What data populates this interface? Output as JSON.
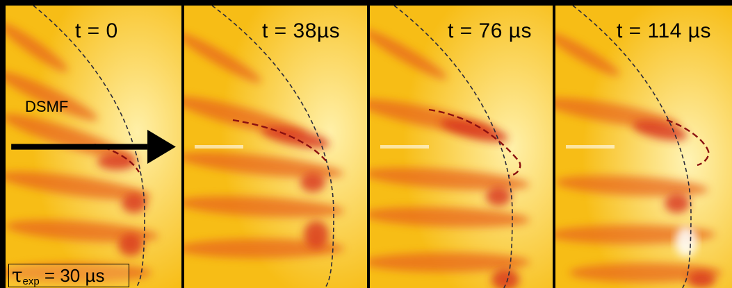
{
  "panels": [
    {
      "time_label": "t = 0"
    },
    {
      "time_label": "t = 38µs"
    },
    {
      "time_label": "t = 76 µs"
    },
    {
      "time_label": "t = 114 µs"
    }
  ],
  "annotation": {
    "front_label": "DSMF"
  },
  "exposure": {
    "symbol": "τ",
    "subscript": "exp",
    "value": "= 30 µs"
  },
  "colors": {
    "background": "#f7c21a",
    "bright": "#ffec9a",
    "dark_band": "#e4501c",
    "front_line": "#2a2a3a",
    "highlight_curve": "#8a1010"
  }
}
